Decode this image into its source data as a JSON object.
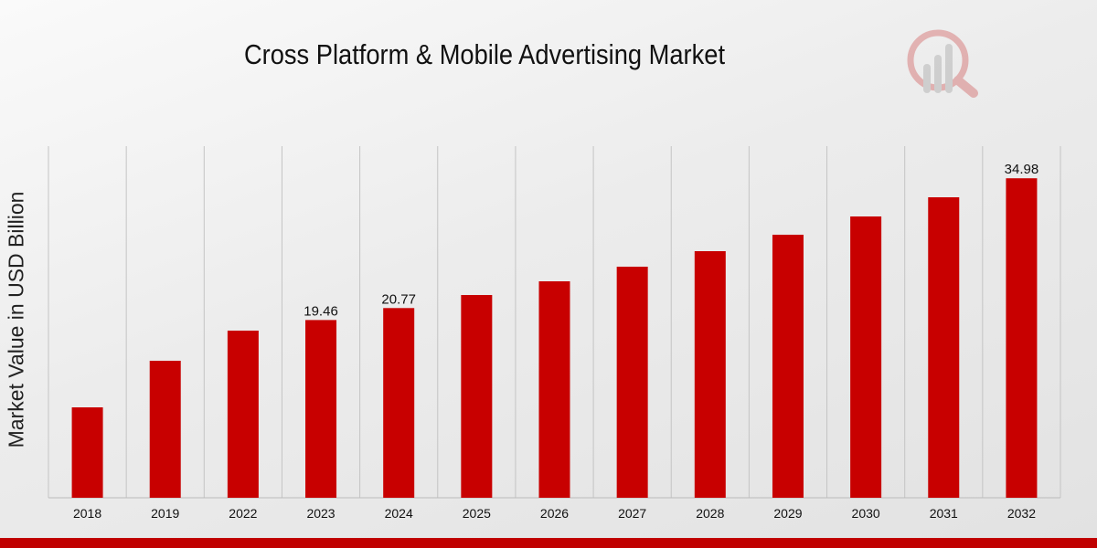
{
  "chart_data": {
    "type": "bar",
    "title": "Cross Platform & Mobile Advertising Market",
    "xlabel": "",
    "ylabel": "Market Value in USD Billion",
    "categories": [
      "2018",
      "2019",
      "2022",
      "2023",
      "2024",
      "2025",
      "2026",
      "2027",
      "2028",
      "2029",
      "2030",
      "2031",
      "2032"
    ],
    "values": [
      9.9,
      15.0,
      18.3,
      19.46,
      20.77,
      22.2,
      23.7,
      25.3,
      27.0,
      28.8,
      30.8,
      32.9,
      34.98
    ],
    "data_labels": {
      "2023": "19.46",
      "2024": "20.77",
      "2032": "34.98"
    },
    "ylim": [
      0,
      38.5
    ],
    "grid": "vertical",
    "bar_color": "#c80000"
  }
}
